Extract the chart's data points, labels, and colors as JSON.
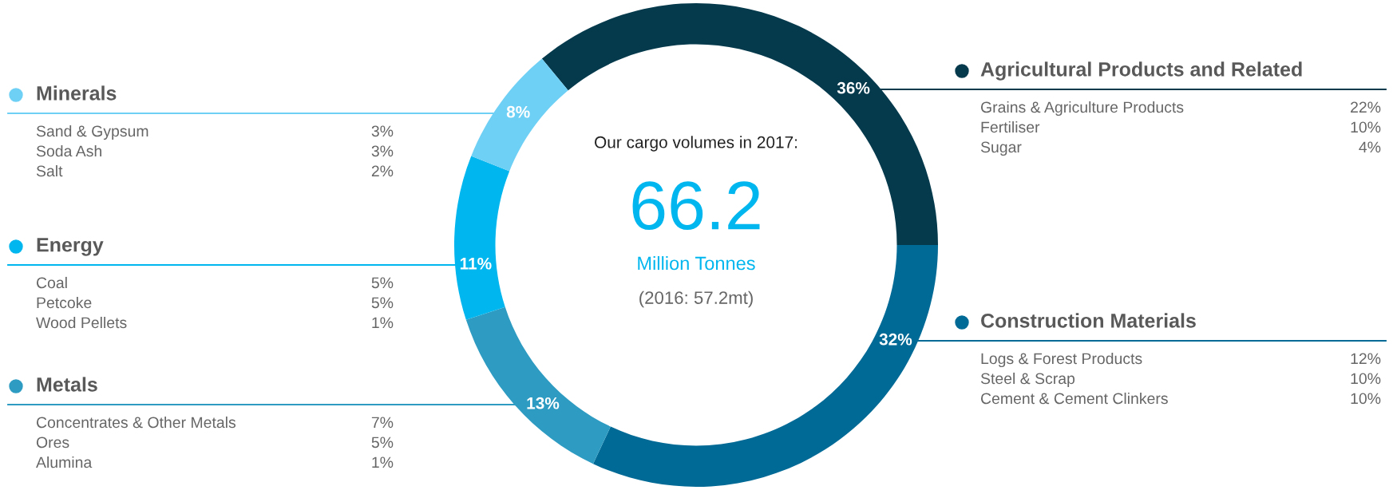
{
  "chart_data": {
    "type": "donut",
    "categories": [
      "Agricultural Products and Related",
      "Construction Materials",
      "Metals",
      "Energy",
      "Minerals"
    ],
    "values": [
      36,
      32,
      13,
      11,
      8
    ],
    "value_labels": [
      "36%",
      "32%",
      "13%",
      "11%",
      "8%"
    ],
    "legend": "top left",
    "colors": [
      "#053a4d",
      "#006a96",
      "#2e9cc2",
      "#00b6ee",
      "#6fd0f5"
    ],
    "annotations": [
      "Our cargo volumes in 2017:",
      "66.2",
      "Million Tonnes",
      "(2016: 57.2mt)",
      "Grains & Agriculture Products",
      "22%",
      "Fertiliser",
      "10%",
      "Sugar",
      "4%",
      "Logs & Forest Products",
      "12%",
      "Steel & Scrap",
      "10%",
      "Cement & Cement Clinkers",
      "10%",
      "Concentrates & Other Metals",
      "7%",
      "Ores",
      "5%",
      "Alumina",
      "1%",
      "Coal",
      "5%",
      "Petcoke",
      "5%",
      "Wood Pellets",
      "1%",
      "Sand & Gypsum",
      "3%",
      "Soda Ash",
      "3%",
      "Salt",
      "2%"
    ]
  }
}
